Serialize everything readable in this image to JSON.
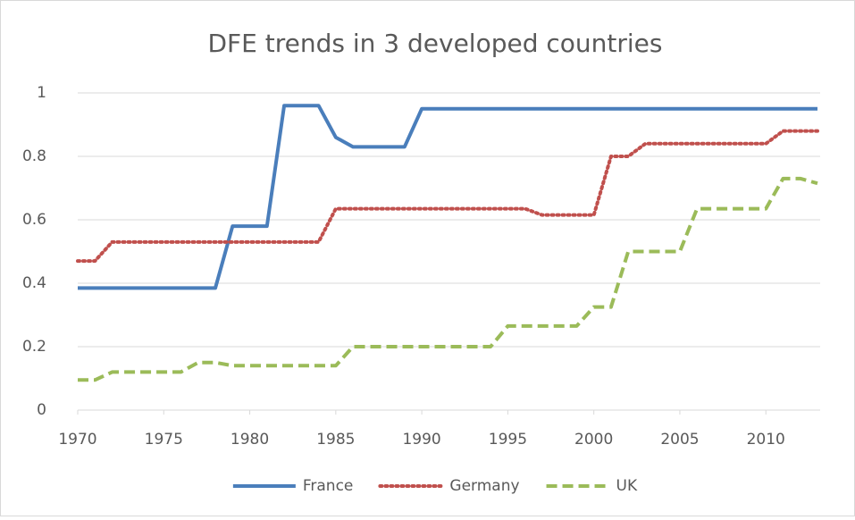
{
  "chart_data": {
    "type": "line",
    "title": "DFE trends in 3 developed countries",
    "x": [
      1970,
      1971,
      1972,
      1973,
      1974,
      1975,
      1976,
      1977,
      1978,
      1979,
      1980,
      1981,
      1982,
      1983,
      1984,
      1985,
      1986,
      1987,
      1988,
      1989,
      1990,
      1991,
      1992,
      1993,
      1994,
      1995,
      1996,
      1997,
      1998,
      1999,
      2000,
      2001,
      2002,
      2003,
      2004,
      2005,
      2006,
      2007,
      2008,
      2009,
      2010,
      2011,
      2012,
      2013
    ],
    "series": [
      {
        "name": "France",
        "color": "#4a7ebb",
        "dash": "solid",
        "values": [
          0.385,
          0.385,
          0.385,
          0.385,
          0.385,
          0.385,
          0.385,
          0.385,
          0.385,
          0.58,
          0.58,
          0.58,
          0.96,
          0.96,
          0.96,
          0.86,
          0.83,
          0.83,
          0.83,
          0.83,
          0.95,
          0.95,
          0.95,
          0.95,
          0.95,
          0.95,
          0.95,
          0.95,
          0.95,
          0.95,
          0.95,
          0.95,
          0.95,
          0.95,
          0.95,
          0.95,
          0.95,
          0.95,
          0.95,
          0.95,
          0.95,
          0.95,
          0.95,
          0.95
        ]
      },
      {
        "name": "Germany",
        "color": "#c0504d",
        "dash": "dotted",
        "values": [
          0.47,
          0.47,
          0.53,
          0.53,
          0.53,
          0.53,
          0.53,
          0.53,
          0.53,
          0.53,
          0.53,
          0.53,
          0.53,
          0.53,
          0.53,
          0.635,
          0.635,
          0.635,
          0.635,
          0.635,
          0.635,
          0.635,
          0.635,
          0.635,
          0.635,
          0.635,
          0.635,
          0.615,
          0.615,
          0.615,
          0.615,
          0.8,
          0.8,
          0.84,
          0.84,
          0.84,
          0.84,
          0.84,
          0.84,
          0.84,
          0.84,
          0.88,
          0.88,
          0.88
        ]
      },
      {
        "name": "UK",
        "color": "#9bbb59",
        "dash": "dashed",
        "values": [
          0.095,
          0.095,
          0.12,
          0.12,
          0.12,
          0.12,
          0.12,
          0.15,
          0.15,
          0.14,
          0.14,
          0.14,
          0.14,
          0.14,
          0.14,
          0.14,
          0.2,
          0.2,
          0.2,
          0.2,
          0.2,
          0.2,
          0.2,
          0.2,
          0.2,
          0.265,
          0.265,
          0.265,
          0.265,
          0.265,
          0.325,
          0.325,
          0.5,
          0.5,
          0.5,
          0.5,
          0.635,
          0.635,
          0.635,
          0.635,
          0.635,
          0.73,
          0.73,
          0.715
        ]
      }
    ],
    "xlim": [
      1970,
      2013
    ],
    "xticks": [
      1970,
      1975,
      1980,
      1985,
      1990,
      1995,
      2000,
      2005,
      2010
    ],
    "ylim": [
      0,
      1
    ],
    "yticks": [
      0,
      0.2,
      0.4,
      0.6,
      0.8,
      1
    ],
    "grid": true,
    "legend": "bottom"
  }
}
